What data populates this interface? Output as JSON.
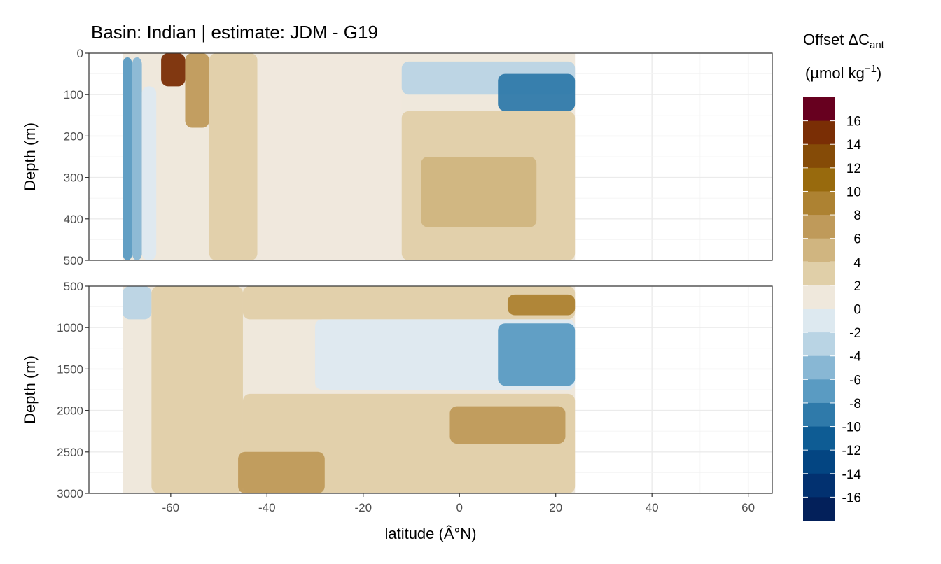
{
  "chart_data": {
    "type": "heatmap",
    "title": "Basin: Indian | estimate: JDM - G19",
    "xlabel": "latitude (Â°N)",
    "x_ticks": [
      -60,
      -40,
      -20,
      0,
      20,
      40,
      60
    ],
    "xlim": [
      -77,
      65
    ],
    "panels": [
      {
        "ylabel": "Depth (m)",
        "ylim": [
          500,
          0
        ],
        "y_ticks": [
          0,
          100,
          200,
          300,
          400,
          500
        ]
      },
      {
        "ylabel": "Depth (m)",
        "ylim": [
          3000,
          500
        ],
        "y_ticks": [
          500,
          1000,
          1500,
          2000,
          2500,
          3000
        ]
      }
    ],
    "data_extent": {
      "lat_min": -70,
      "lat_max": 24
    },
    "legend": {
      "title_line1": "Offset ΔC",
      "title_sub": "ant",
      "title_line2": "(µmol kg",
      "title_sup": "−1",
      "title_close": ")",
      "labels": [
        "16",
        "14",
        "12",
        "10",
        "8",
        "6",
        "4",
        "2",
        "0",
        "-2",
        "-4",
        "-6",
        "-8",
        "-10",
        "-12",
        "-14",
        "-16"
      ],
      "colors": [
        "#67001f",
        "#7a2e05",
        "#854b07",
        "#986a0d",
        "#ad8232",
        "#bf9a5a",
        "#d0b580",
        "#e0cfa8",
        "#efe8dc",
        "#dde9f0",
        "#b9d4e4",
        "#88b7d4",
        "#5a9bc2",
        "#2f7aaa",
        "#0e5c94",
        "#034582",
        "#023170",
        "#03205a"
      ]
    },
    "bands": {
      "top": [
        {
          "lat0": -70,
          "lat1": -68,
          "d0": 10,
          "d1": 500,
          "level": -8
        },
        {
          "lat0": -68,
          "lat1": -66,
          "d0": 10,
          "d1": 500,
          "level": -6
        },
        {
          "lat0": -66,
          "lat1": -63,
          "d0": 80,
          "d1": 500,
          "level": -2
        },
        {
          "lat0": -62,
          "lat1": -57,
          "d0": 0,
          "d1": 80,
          "level": 14
        },
        {
          "lat0": -57,
          "lat1": -52,
          "d0": 0,
          "d1": 180,
          "level": 6
        },
        {
          "lat0": -52,
          "lat1": -42,
          "d0": 0,
          "d1": 500,
          "level": 2
        },
        {
          "lat0": -42,
          "lat1": -12,
          "d0": 0,
          "d1": 500,
          "level": 0
        },
        {
          "lat0": -12,
          "lat1": 24,
          "d0": 20,
          "d1": 100,
          "level": -4
        },
        {
          "lat0": 8,
          "lat1": 24,
          "d0": 50,
          "d1": 140,
          "level": -10
        },
        {
          "lat0": -12,
          "lat1": 24,
          "d0": 140,
          "d1": 500,
          "level": 2
        },
        {
          "lat0": -8,
          "lat1": 16,
          "d0": 250,
          "d1": 420,
          "level": 4
        }
      ],
      "bottom": [
        {
          "lat0": -70,
          "lat1": -64,
          "d0": 500,
          "d1": 900,
          "level": -4
        },
        {
          "lat0": -64,
          "lat1": -45,
          "d0": 500,
          "d1": 3000,
          "level": 2
        },
        {
          "lat0": -45,
          "lat1": 24,
          "d0": 500,
          "d1": 900,
          "level": 2
        },
        {
          "lat0": 10,
          "lat1": 24,
          "d0": 600,
          "d1": 850,
          "level": 8
        },
        {
          "lat0": -30,
          "lat1": 24,
          "d0": 900,
          "d1": 1750,
          "level": -2
        },
        {
          "lat0": 8,
          "lat1": 24,
          "d0": 950,
          "d1": 1700,
          "level": -8
        },
        {
          "lat0": -45,
          "lat1": 24,
          "d0": 1800,
          "d1": 3000,
          "level": 2
        },
        {
          "lat0": -2,
          "lat1": 22,
          "d0": 1950,
          "d1": 2400,
          "level": 6
        },
        {
          "lat0": -46,
          "lat1": -28,
          "d0": 2500,
          "d1": 3000,
          "level": 6
        }
      ]
    }
  }
}
